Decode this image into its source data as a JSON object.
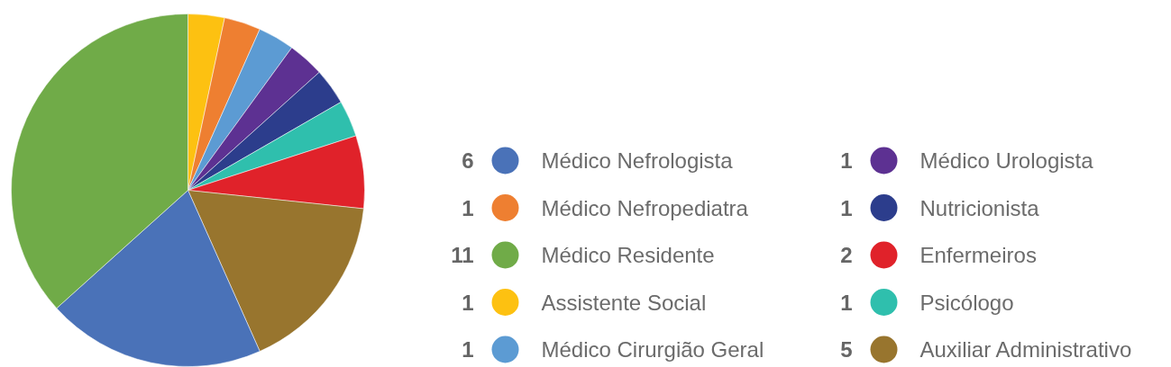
{
  "chart_data": {
    "type": "pie",
    "categories": [
      "Médico Nefrologista",
      "Médico Nefropediatra",
      "Médico Residente",
      "Assistente Social",
      "Médico Cirurgião Geral",
      "Médico Urologista",
      "Nutricionista",
      "Enfermeiros",
      "Psicólogo",
      "Auxiliar Administrativo"
    ],
    "values": [
      6,
      1,
      11,
      1,
      1,
      1,
      1,
      2,
      1,
      5
    ],
    "colors": [
      "#4a72b8",
      "#ee7f31",
      "#70ab48",
      "#fdc111",
      "#5c9bd3",
      "#5d3192",
      "#2c3d8c",
      "#e0222a",
      "#2fbfad",
      "#98752e"
    ],
    "legend": "right",
    "data_labels": true
  }
}
